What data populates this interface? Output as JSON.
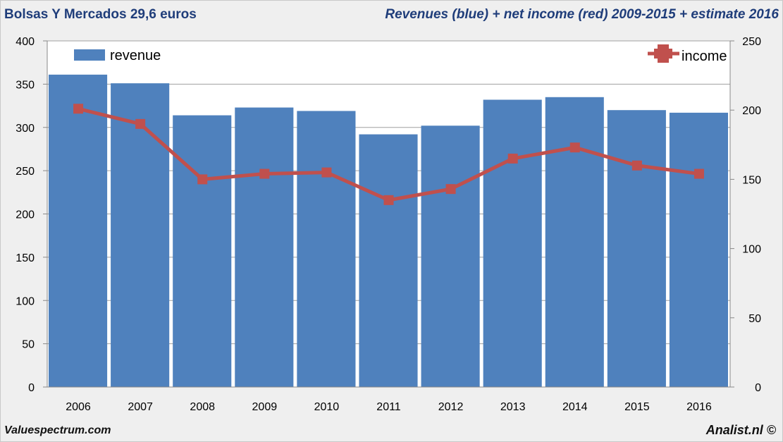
{
  "header": {
    "left_title": "Bolsas Y Mercados 29,6 euros",
    "right_title": "Revenues (blue) + net income (red) 2009-2015 + estimate 2016"
  },
  "footer": {
    "left": "Valuespectrum.com",
    "right": "Analist.nl ©"
  },
  "chart_data": {
    "type": "bar+line",
    "categories": [
      "2006",
      "2007",
      "2008",
      "2009",
      "2010",
      "2011",
      "2012",
      "2013",
      "2014",
      "2015",
      "2016"
    ],
    "series": [
      {
        "name": "revenue",
        "type": "bar",
        "axis": "left",
        "color": "#4f81bd",
        "values": [
          361,
          351,
          314,
          323,
          319,
          292,
          302,
          332,
          335,
          320,
          317
        ]
      },
      {
        "name": "income",
        "type": "line",
        "axis": "right",
        "color": "#c0504d",
        "values": [
          201,
          190,
          150,
          154,
          155,
          135,
          143,
          165,
          173,
          160,
          154
        ]
      }
    ],
    "left_axis": {
      "range": [
        0,
        400
      ],
      "ticks": [
        0,
        50,
        100,
        150,
        200,
        250,
        300,
        350,
        400
      ]
    },
    "right_axis": {
      "range": [
        0,
        250
      ],
      "ticks": [
        0,
        50,
        100,
        150,
        200,
        250
      ]
    },
    "grid": true,
    "legend": {
      "revenue": "top-left",
      "income": "top-right"
    }
  }
}
